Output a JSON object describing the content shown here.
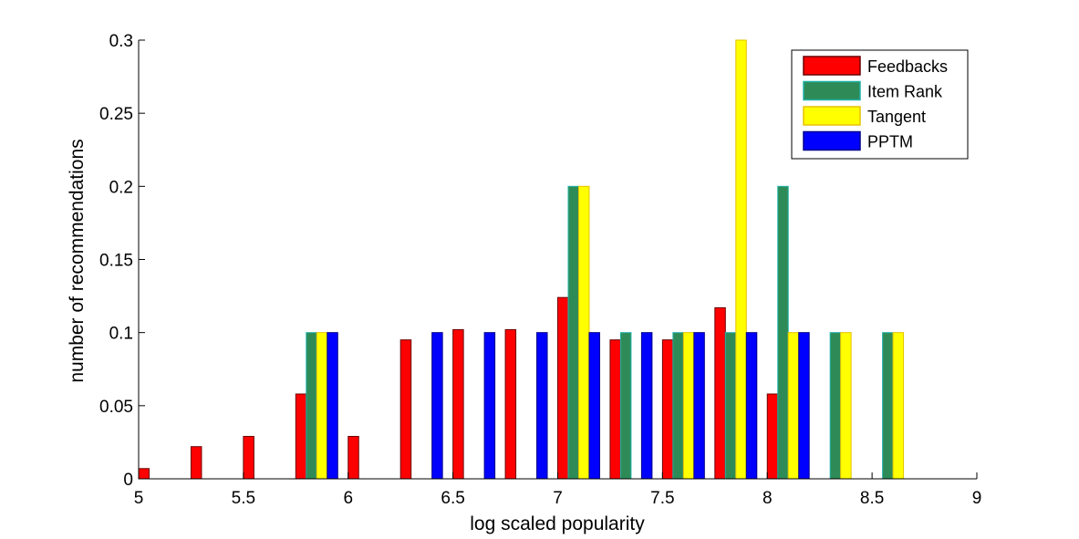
{
  "chart_data": {
    "type": "bar",
    "xlabel": "log scaled popularity",
    "ylabel": "number of recommendations",
    "xlim": [
      5,
      9
    ],
    "ylim": [
      0,
      0.3
    ],
    "xticks": [
      "5",
      "5.5",
      "6",
      "6.5",
      "7",
      "7.5",
      "8",
      "8.5",
      "9"
    ],
    "yticks": [
      "0",
      "0.05",
      "0.1",
      "0.15",
      "0.2",
      "0.25",
      "0.3"
    ],
    "grid": false,
    "legend_position": "top-right",
    "bin_centers": [
      5.1,
      5.35,
      5.6,
      5.85,
      6.1,
      6.35,
      6.6,
      6.85,
      7.1,
      7.35,
      7.6,
      7.85,
      8.1,
      8.35,
      8.6,
      8.85
    ],
    "series": [
      {
        "name": "Feedbacks",
        "color": "#ff0000",
        "edge": "#6b0000",
        "values": [
          0.007,
          0.022,
          0.029,
          0.058,
          0.029,
          0.095,
          0.102,
          0.102,
          0.124,
          0.095,
          0.095,
          0.117,
          0.058,
          0,
          0,
          0
        ]
      },
      {
        "name": "Item Rank",
        "color": "#2e8b57",
        "edge": "#20b2aa",
        "values": [
          0,
          0,
          0,
          0.1,
          0,
          0,
          0,
          0,
          0.2,
          0.1,
          0.1,
          0.1,
          0.2,
          0.1,
          0.1,
          0
        ]
      },
      {
        "name": "Tangent",
        "color": "#ffff00",
        "edge": "#e6c200",
        "values": [
          0,
          0,
          0,
          0.1,
          0,
          0,
          0,
          0,
          0.2,
          0,
          0.1,
          0.3,
          0.1,
          0.1,
          0.1,
          0
        ]
      },
      {
        "name": "PPTM",
        "color": "#0000ff",
        "edge": "#00008b",
        "values": [
          0,
          0,
          0,
          0.1,
          0,
          0.1,
          0.1,
          0.1,
          0.1,
          0.1,
          0.1,
          0.1,
          0.1,
          0,
          0,
          0
        ]
      }
    ]
  }
}
